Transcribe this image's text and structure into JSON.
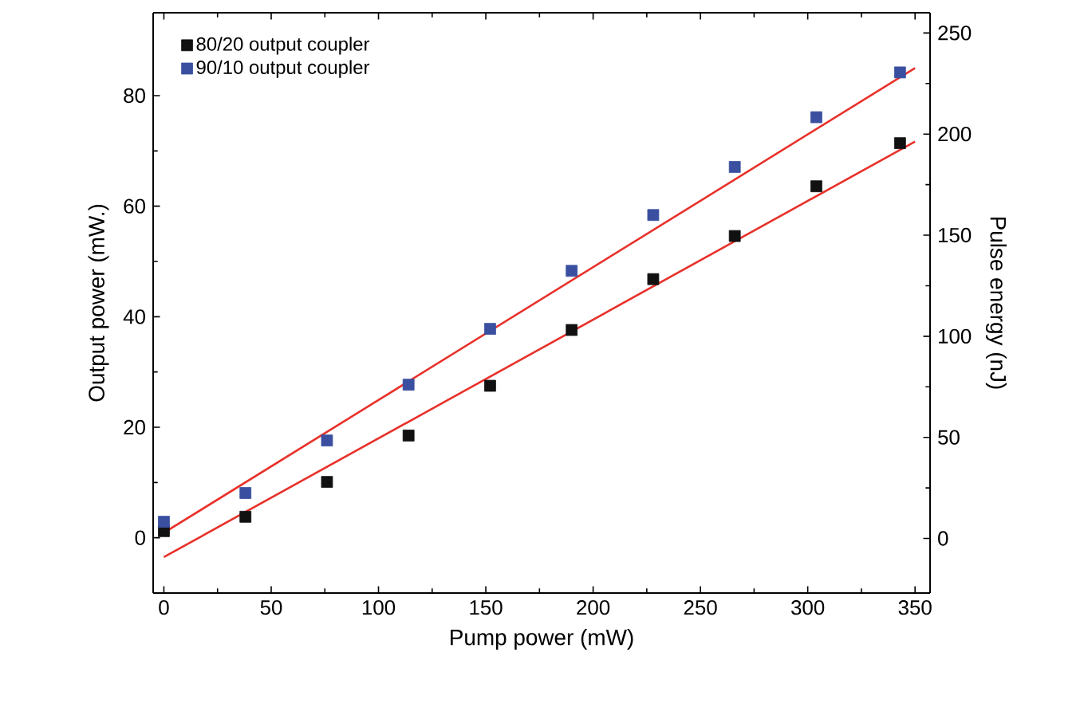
{
  "chart_data": {
    "type": "scatter",
    "xlabel": "Pump power (mW)",
    "ylabel": "Output power (mW.)",
    "y2label": "Pulse energy (nJ)",
    "xlim": [
      -5,
      357
    ],
    "xticks": [
      0,
      50,
      100,
      150,
      200,
      250,
      300,
      350
    ],
    "ylim": [
      -10,
      95
    ],
    "yticks": [
      0,
      20,
      40,
      60,
      80
    ],
    "y2lim": [
      -27,
      260
    ],
    "y2ticks": [
      0,
      50,
      100,
      150,
      200,
      250
    ],
    "legend": "top left",
    "marker": "square",
    "grid": false,
    "series": [
      {
        "name": "80/20 output coupler",
        "color": "#111111",
        "x": [
          0,
          38,
          76,
          114,
          152,
          190,
          228,
          266,
          304,
          343
        ],
        "values": [
          1.2,
          3.8,
          10.1,
          18.5,
          27.5,
          37.6,
          46.8,
          54.6,
          63.6,
          71.4
        ]
      },
      {
        "name": "90/10 output coupler",
        "color": "#3a4fa0",
        "x": [
          0,
          38,
          76,
          114,
          152,
          190,
          228,
          266,
          304,
          343
        ],
        "values": [
          2.9,
          8.1,
          17.6,
          27.7,
          37.8,
          48.3,
          58.4,
          67.1,
          76.1,
          84.2
        ]
      },
      {
        "type": "line",
        "marker": "none",
        "color": "#e8312a",
        "x": [
          0,
          350
        ],
        "values": [
          -3.5,
          71.7
        ]
      },
      {
        "type": "line",
        "marker": "none",
        "color": "#e8312a",
        "x": [
          0,
          350
        ],
        "values": [
          0.9,
          85
        ]
      }
    ]
  }
}
